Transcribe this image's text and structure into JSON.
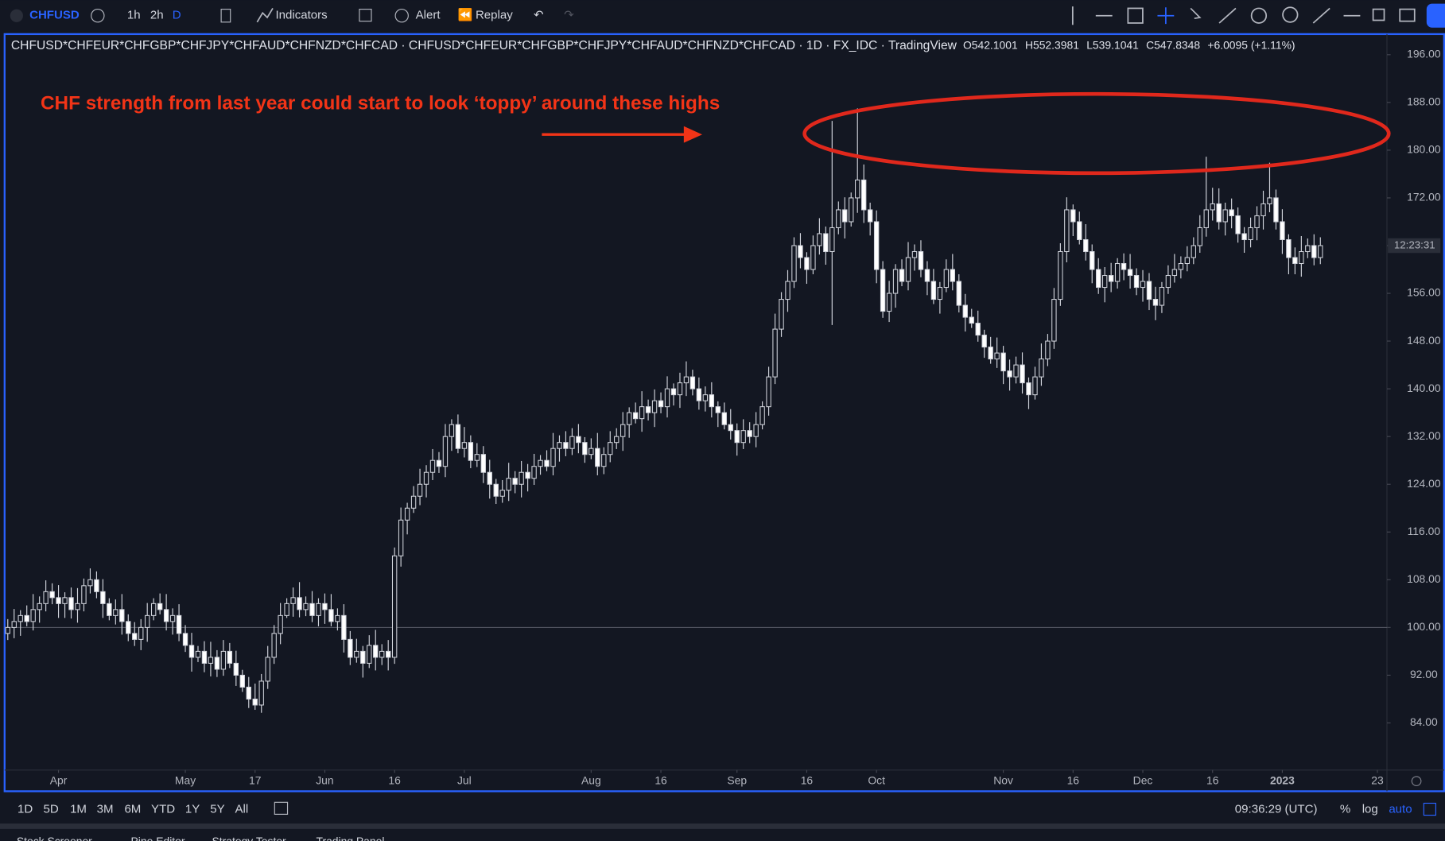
{
  "toolbar": {
    "symbol": "CHFUSD",
    "intervals": [
      "1h",
      "2h",
      "D"
    ],
    "indicators": "Indicators",
    "alert": "Alert",
    "replay": "Replay"
  },
  "chart_data": {
    "type": "candlestick",
    "title": "CHFUSD*CHFEUR*CHFGBP*CHFJPY*CHFAUD*CHFNZD*CHFCAD · CHFUSD*CHFEUR*CHFGBP*CHFJPY*CHFAUD*CHFNZD*CHFCAD · 1D · FX_IDC · TradingView",
    "legend_values": [
      "O542.1001",
      "H552.3981",
      "L539.1041",
      "C547.8348",
      "+6.0095 (+1.11%)"
    ],
    "annotation": "CHF strength from last year could start to look ‘toppy’ around these highs",
    "price_tag": "12:23:31",
    "reference_line": 100,
    "up_color": "#131722",
    "down_color": "#ffffff",
    "wick_color": "#d1d4dc",
    "candles": [
      [
        99,
        101.4,
        97.9,
        100
      ],
      [
        100,
        103.1,
        98.2,
        101
      ],
      [
        101,
        102.9,
        98.6,
        102
      ],
      [
        102,
        103.7,
        100.2,
        101
      ],
      [
        101,
        105.6,
        99.5,
        103
      ],
      [
        103,
        105.2,
        100.8,
        104
      ],
      [
        104,
        107.9,
        102.7,
        106
      ],
      [
        106,
        107.4,
        103.9,
        105
      ],
      [
        105,
        107.1,
        101.6,
        104
      ],
      [
        104,
        105.9,
        101.6,
        105
      ],
      [
        105,
        106.7,
        101.5,
        103
      ],
      [
        103,
        106.6,
        100.8,
        104
      ],
      [
        104,
        108.2,
        102.7,
        107
      ],
      [
        107,
        109.9,
        105.7,
        108
      ],
      [
        108,
        109.4,
        104.9,
        106
      ],
      [
        106,
        108.1,
        101.6,
        104
      ],
      [
        104,
        104.9,
        101.2,
        102
      ],
      [
        102,
        104.7,
        100.5,
        103
      ],
      [
        103,
        105.6,
        98.8,
        101
      ],
      [
        101,
        102.2,
        97.7,
        99
      ],
      [
        99,
        100.9,
        96.9,
        98
      ],
      [
        98,
        101.4,
        96.2,
        100
      ],
      [
        100,
        104.1,
        97.6,
        102
      ],
      [
        102,
        104.9,
        101.2,
        104
      ],
      [
        104,
        105.7,
        102.2,
        103
      ],
      [
        103,
        105.6,
        99.5,
        101
      ],
      [
        101,
        103.2,
        98.8,
        102
      ],
      [
        102,
        103.9,
        97.7,
        99
      ],
      [
        99,
        100.4,
        95.9,
        97
      ],
      [
        97,
        99.1,
        92.6,
        95
      ],
      [
        95,
        96.9,
        94.2,
        96
      ],
      [
        96,
        97.7,
        92.5,
        94
      ],
      [
        94,
        97.6,
        91.8,
        95
      ],
      [
        95,
        96.2,
        91.7,
        93
      ],
      [
        93,
        97.9,
        91.9,
        96
      ],
      [
        96,
        97.4,
        93.2,
        94
      ],
      [
        94,
        96.1,
        90.2,
        92
      ],
      [
        92,
        92.9,
        89.2,
        90
      ],
      [
        90,
        91.7,
        86.5,
        88
      ],
      [
        88,
        90.6,
        86.2,
        87
      ],
      [
        87,
        92.2,
        85.7,
        91
      ],
      [
        91,
        96.9,
        89.7,
        95
      ],
      [
        95,
        100.4,
        93.9,
        99
      ],
      [
        99,
        104.1,
        97.2,
        102
      ],
      [
        102,
        104.9,
        101.6,
        104
      ],
      [
        104,
        106.7,
        101.8,
        105
      ],
      [
        105,
        107.6,
        101.7,
        103
      ],
      [
        103,
        105.2,
        101.9,
        104
      ],
      [
        104,
        106.1,
        100.9,
        102
      ],
      [
        102,
        104.9,
        100.2,
        104
      ],
      [
        104,
        105.7,
        100.6,
        103
      ],
      [
        103,
        105.6,
        100.2,
        101
      ],
      [
        101,
        103.2,
        99.5,
        102
      ],
      [
        102,
        103.9,
        95.8,
        98
      ],
      [
        98,
        99.4,
        93.7,
        95
      ],
      [
        95,
        98.1,
        94.1,
        96
      ],
      [
        96,
        96.9,
        91.6,
        94
      ],
      [
        94,
        98.7,
        93.2,
        97
      ],
      [
        97,
        99.6,
        92.8,
        95
      ],
      [
        95,
        97.2,
        93.7,
        96
      ],
      [
        96,
        97.9,
        92.8,
        95
      ],
      [
        95,
        113.4,
        93.9,
        112
      ],
      [
        112,
        120.1,
        110.2,
        118
      ],
      [
        118,
        120.9,
        115.6,
        120
      ],
      [
        120,
        123.7,
        119.2,
        122
      ],
      [
        122,
        126.6,
        120.5,
        124
      ],
      [
        124,
        127.2,
        121.8,
        126
      ],
      [
        126,
        129.9,
        124.7,
        128
      ],
      [
        128,
        129.4,
        125.9,
        127
      ],
      [
        127,
        134.1,
        125.2,
        132
      ],
      [
        132,
        134.9,
        129.6,
        134
      ],
      [
        134,
        135.7,
        129.2,
        130
      ],
      [
        130,
        133.6,
        128.5,
        131
      ],
      [
        131,
        132.2,
        126.7,
        128
      ],
      [
        128,
        130.9,
        126.9,
        129
      ],
      [
        129,
        130.4,
        124.2,
        126
      ],
      [
        126,
        128.1,
        121.6,
        124
      ],
      [
        124,
        124.9,
        120.7,
        122
      ],
      [
        122,
        124.7,
        120.9,
        123
      ],
      [
        123,
        127.6,
        121.2,
        125
      ],
      [
        125,
        126.2,
        122.5,
        124
      ],
      [
        124,
        127.9,
        121.8,
        126
      ],
      [
        126,
        127.4,
        122.8,
        125
      ],
      [
        125,
        129.1,
        123.9,
        127
      ],
      [
        127,
        128.9,
        125.6,
        128
      ],
      [
        128,
        129.7,
        126.2,
        127
      ],
      [
        127,
        132.6,
        125.5,
        130
      ],
      [
        130,
        132.2,
        127.8,
        131
      ],
      [
        131,
        132.9,
        128.7,
        130
      ],
      [
        130,
        133.4,
        128.9,
        132
      ],
      [
        132,
        134.1,
        129.2,
        131
      ],
      [
        131,
        131.9,
        127.6,
        129
      ],
      [
        129,
        131.7,
        128.2,
        130
      ],
      [
        130,
        132.6,
        125.5,
        127
      ],
      [
        127,
        130.2,
        125.7,
        129
      ],
      [
        129,
        132.9,
        127.7,
        131
      ],
      [
        131,
        133.4,
        129.9,
        132
      ],
      [
        132,
        136.1,
        129.6,
        134
      ],
      [
        134,
        136.9,
        131.8,
        136
      ],
      [
        136,
        137.7,
        134.2,
        135
      ],
      [
        135,
        139.6,
        132.8,
        137
      ],
      [
        137,
        138.2,
        134.7,
        136
      ],
      [
        136,
        139.9,
        133.6,
        138
      ],
      [
        138,
        139.4,
        135.9,
        137
      ],
      [
        137,
        142.1,
        135.2,
        140
      ],
      [
        140,
        140.9,
        137.2,
        139
      ],
      [
        139,
        142.7,
        136.8,
        141
      ],
      [
        141,
        144.6,
        138.8,
        142
      ],
      [
        142,
        143.2,
        138.9,
        140
      ],
      [
        140,
        141.9,
        136.5,
        138
      ],
      [
        138,
        140.4,
        136.2,
        139
      ],
      [
        139,
        141.1,
        135.2,
        137
      ],
      [
        137,
        137.9,
        133.6,
        136
      ],
      [
        136,
        137.7,
        133.2,
        134
      ],
      [
        134,
        136.6,
        131.5,
        133
      ],
      [
        133,
        134.2,
        128.8,
        131
      ],
      [
        131,
        134.9,
        129.9,
        133
      ],
      [
        133,
        134.4,
        130.9,
        132
      ],
      [
        132,
        136.1,
        130.2,
        134
      ],
      [
        134,
        137.9,
        133.2,
        137
      ],
      [
        137,
        143.7,
        135.5,
        142
      ],
      [
        142,
        152.6,
        140.8,
        150
      ],
      [
        150,
        156.2,
        148.7,
        155
      ],
      [
        155,
        159.9,
        152.9,
        158
      ],
      [
        158,
        165.4,
        156.9,
        164
      ],
      [
        164,
        166.1,
        160.2,
        162
      ],
      [
        162,
        162.9,
        157.6,
        160
      ],
      [
        160,
        165.7,
        159.2,
        164
      ],
      [
        164,
        168.6,
        162.5,
        166
      ],
      [
        166,
        167.2,
        160.8,
        163
      ],
      [
        163,
        184.9,
        150.7,
        167
      ],
      [
        167,
        171.4,
        165.9,
        170
      ],
      [
        170,
        172.1,
        165.2,
        168
      ],
      [
        168,
        172.9,
        167.2,
        172
      ],
      [
        172,
        187,
        169.5,
        175
      ],
      [
        175,
        177.6,
        167.8,
        170
      ],
      [
        170,
        171.2,
        165.7,
        168
      ],
      [
        168,
        169.9,
        157.7,
        160
      ],
      [
        160,
        161.4,
        151.9,
        153
      ],
      [
        153,
        158.1,
        151.2,
        156
      ],
      [
        156,
        160.9,
        153.6,
        160
      ],
      [
        160,
        161.7,
        157.2,
        158
      ],
      [
        158,
        164.6,
        156.5,
        162
      ],
      [
        162,
        164.2,
        159.8,
        163
      ],
      [
        163,
        164.9,
        158.7,
        160
      ],
      [
        160,
        161.4,
        155.7,
        158
      ],
      [
        158,
        160.1,
        154.2,
        155
      ],
      [
        155,
        157.9,
        152.6,
        157
      ],
      [
        157,
        161.7,
        156.2,
        160
      ],
      [
        160,
        162.6,
        156.5,
        158
      ],
      [
        158,
        159.2,
        152.8,
        154
      ],
      [
        154,
        155.9,
        149.6,
        152
      ],
      [
        152,
        153.4,
        150.2,
        151
      ],
      [
        151,
        153.1,
        147.9,
        149
      ],
      [
        149,
        149.9,
        145.2,
        147
      ],
      [
        147,
        148.7,
        144.2,
        145
      ],
      [
        145,
        148.6,
        143.5,
        146
      ],
      [
        146,
        147.2,
        140.8,
        143
      ],
      [
        143,
        144.9,
        139.7,
        142
      ],
      [
        142,
        145.4,
        140.9,
        144
      ],
      [
        144,
        146.1,
        139.2,
        141
      ],
      [
        141,
        141.9,
        136.6,
        139
      ],
      [
        139,
        143.7,
        138.2,
        142
      ],
      [
        142,
        147.6,
        140.5,
        145
      ],
      [
        145,
        149.2,
        143.8,
        148
      ],
      [
        148,
        156.9,
        146.7,
        155
      ],
      [
        155,
        164.4,
        153.9,
        163
      ],
      [
        163,
        172.1,
        161.2,
        170
      ],
      [
        170,
        170.9,
        165.6,
        168
      ],
      [
        168,
        169.7,
        164.2,
        165
      ],
      [
        165,
        167.6,
        161.5,
        163
      ],
      [
        163,
        164.2,
        157.7,
        160
      ],
      [
        160,
        161.9,
        155.9,
        157
      ],
      [
        157,
        160.4,
        154.5,
        159
      ],
      [
        159,
        161.1,
        156.2,
        158
      ],
      [
        158,
        161.9,
        156.8,
        161
      ],
      [
        161,
        162.7,
        158.2,
        160
      ],
      [
        160,
        162.6,
        156.8,
        159
      ],
      [
        159,
        160.2,
        155.7,
        157
      ],
      [
        157,
        159.9,
        154.6,
        158
      ],
      [
        158,
        159.4,
        153.2,
        155
      ],
      [
        155,
        157.1,
        151.5,
        154
      ],
      [
        154,
        157.9,
        152.7,
        157
      ],
      [
        157,
        160.7,
        155.9,
        159
      ],
      [
        159,
        162.6,
        157.8,
        160
      ],
      [
        160,
        162.2,
        158.5,
        161
      ],
      [
        161,
        163.9,
        159.7,
        162
      ],
      [
        162,
        165.4,
        160.9,
        164
      ],
      [
        164,
        169.1,
        162.8,
        167
      ],
      [
        167,
        178.9,
        165.5,
        170
      ],
      [
        170,
        173.7,
        168.2,
        171
      ],
      [
        171,
        173.6,
        166.7,
        168
      ],
      [
        168,
        171.2,
        165.7,
        170
      ],
      [
        170,
        171.9,
        166.9,
        169
      ],
      [
        169,
        170.4,
        164.5,
        166
      ],
      [
        166,
        167.1,
        162.8,
        165
      ],
      [
        165,
        168.7,
        163.7,
        167
      ],
      [
        167,
        170.6,
        164.9,
        169
      ],
      [
        169,
        173.2,
        166.7,
        171
      ],
      [
        171,
        177.9,
        169.6,
        172
      ],
      [
        172,
        173.4,
        166.7,
        168
      ],
      [
        168,
        170.1,
        162.6,
        165
      ],
      [
        165,
        165.9,
        159.2,
        162
      ],
      [
        162,
        163.7,
        159.2,
        161
      ],
      [
        161,
        165.6,
        158.8,
        163
      ],
      [
        163,
        165.2,
        161.9,
        164
      ],
      [
        164,
        165.9,
        160.7,
        162
      ],
      [
        162,
        165.4,
        160.9,
        164
      ]
    ],
    "xlim": [
      -0.5,
      217.5
    ],
    "xticks": [
      {
        "value": 8,
        "label": "Apr"
      },
      {
        "value": 28,
        "label": "May"
      },
      {
        "value": 39,
        "label": "17"
      },
      {
        "value": 50,
        "label": "Jun"
      },
      {
        "value": 61,
        "label": "16"
      },
      {
        "value": 72,
        "label": "Jul"
      },
      {
        "value": 92,
        "label": "Aug"
      },
      {
        "value": 103,
        "label": "16"
      },
      {
        "value": 115,
        "label": "Sep"
      },
      {
        "value": 126,
        "label": "16"
      },
      {
        "value": 137,
        "label": "Oct"
      },
      {
        "value": 157,
        "label": "Nov"
      },
      {
        "value": 168,
        "label": "16"
      },
      {
        "value": 179,
        "label": "Dec"
      },
      {
        "value": 190,
        "label": "16"
      },
      {
        "value": 201,
        "label": "2023"
      },
      {
        "value": 216,
        "label": "23"
      }
    ],
    "ylim": [
      76.1,
      199.3
    ],
    "yticks": [
      {
        "value": 84,
        "label": "84.00"
      },
      {
        "value": 92,
        "label": "92.00"
      },
      {
        "value": 100,
        "label": "100.00"
      },
      {
        "value": 108,
        "label": "108.00"
      },
      {
        "value": 116,
        "label": "116.00"
      },
      {
        "value": 124,
        "label": "124.00"
      },
      {
        "value": 132,
        "label": "132.00"
      },
      {
        "value": 140,
        "label": "140.00"
      },
      {
        "value": 148,
        "label": "148.00"
      },
      {
        "value": 156,
        "label": "156.00"
      },
      {
        "value": 164,
        "label": "164.00"
      },
      {
        "value": 172,
        "label": "172.00"
      },
      {
        "value": 180,
        "label": "180.00"
      },
      {
        "value": 188,
        "label": "188.00"
      },
      {
        "value": 196,
        "label": "196.00"
      }
    ]
  },
  "bottom_bar": {
    "ranges": [
      "1D",
      "5D",
      "1M",
      "3M",
      "6M",
      "YTD",
      "1Y",
      "5Y",
      "All"
    ],
    "clock": "09:36:29 (UTC)",
    "options": [
      "%",
      "log",
      "auto"
    ]
  },
  "panel_tabs": [
    "Stock Screener",
    "Pine Editor",
    "Strategy Tester",
    "Trading Panel"
  ]
}
